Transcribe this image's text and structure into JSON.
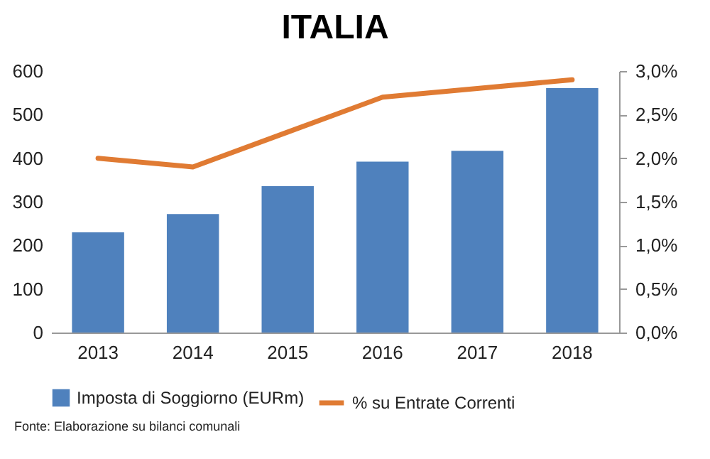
{
  "chart_data": {
    "type": "bar",
    "title": "ITALIA",
    "categories": [
      "2013",
      "2014",
      "2015",
      "2016",
      "2017",
      "2018"
    ],
    "series": [
      {
        "name": "Imposta di Soggiorno (EURm)",
        "color": "#4f81bd",
        "values": [
          230,
          272,
          336,
          392,
          417,
          561
        ]
      },
      {
        "name": "% su Entrate Correnti",
        "type": "line",
        "axis": "y2",
        "color": "#e07b33",
        "values": [
          2.0,
          1.9,
          2.3,
          2.7,
          2.8,
          2.9
        ]
      }
    ],
    "ylim": [
      0,
      600
    ],
    "yticks": [
      0,
      100,
      200,
      300,
      400,
      500,
      600
    ],
    "y2lim": [
      0,
      3
    ],
    "y2ticks": [
      {
        "value": 0,
        "label": "0,0%"
      },
      {
        "value": 0.5,
        "label": "0,5%"
      },
      {
        "value": 1,
        "label": "1,0%"
      },
      {
        "value": 1.5,
        "label": "1,5%"
      },
      {
        "value": 2,
        "label": "2,0%"
      },
      {
        "value": 2.5,
        "label": "2,5%"
      },
      {
        "value": 3,
        "label": "3,0%"
      }
    ],
    "grid": false,
    "legend": "bottom",
    "annotations": [
      "Fonte: Elaborazione su bilanci comunali"
    ]
  }
}
